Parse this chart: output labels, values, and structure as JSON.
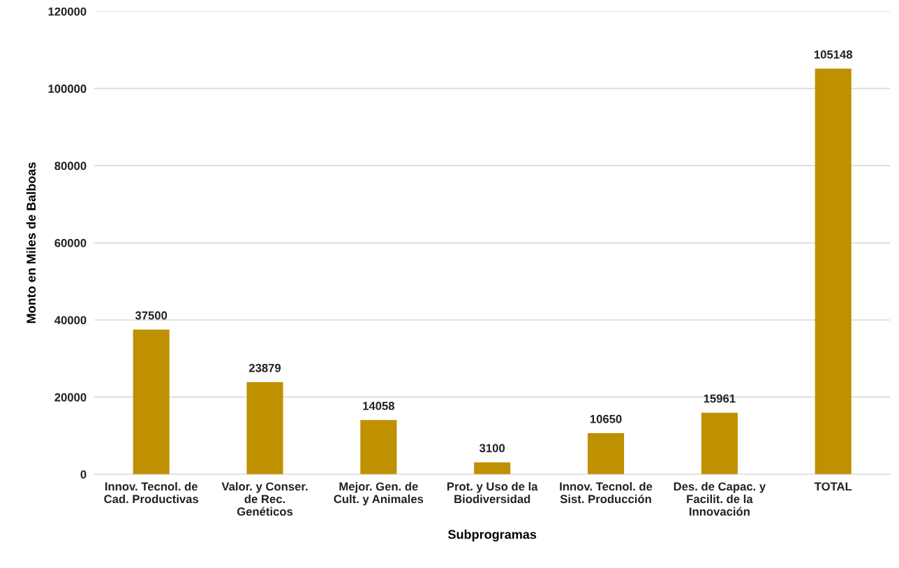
{
  "chart_data": {
    "type": "bar",
    "xlabel": "Subprogramas",
    "ylabel": "Monto en Miles de Balboas",
    "categories": [
      "Innov. Tecnol. de\nCad. Productivas",
      "Valor. y Conser.\nde Rec.\nGenéticos",
      "Mejor. Gen. de\nCult. y Animales",
      "Prot. y Uso de la\nBiodiversidad",
      "Innov. Tecnol. de\nSist. Producción",
      "Des. de Capac. y\nFacilit. de la\nInnovación",
      "TOTAL"
    ],
    "values": [
      37500,
      23879,
      14058,
      3100,
      10650,
      15961,
      105148
    ],
    "color": "#bf9000",
    "data_labels": true,
    "ylim": [
      0,
      120000
    ],
    "yticks": [
      0,
      20000,
      40000,
      60000,
      80000,
      100000,
      120000
    ],
    "grid": "y"
  }
}
